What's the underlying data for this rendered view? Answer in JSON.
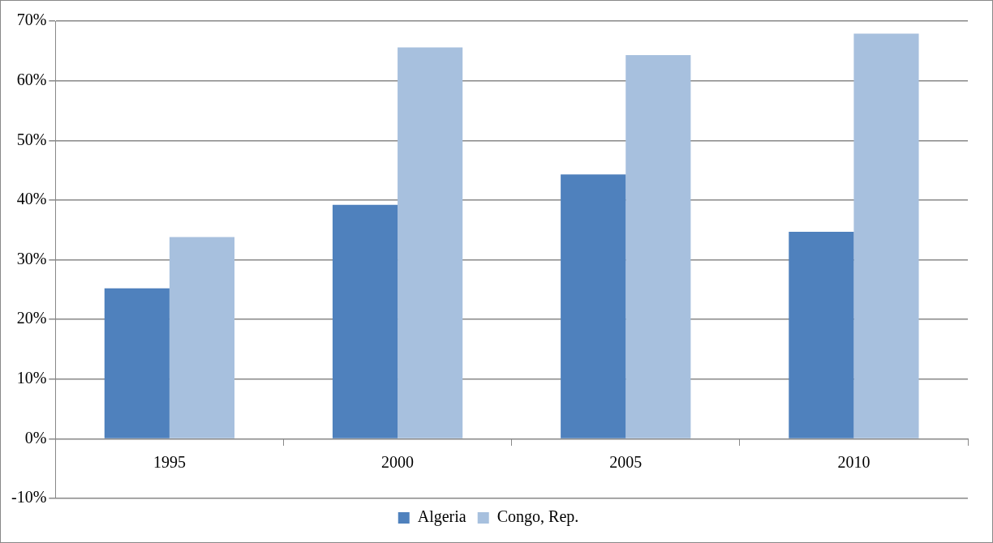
{
  "chart_data": {
    "type": "bar",
    "categories": [
      "1995",
      "2000",
      "2005",
      "2010"
    ],
    "series": [
      {
        "name": "Algeria",
        "color": "#4f81bd",
        "values": [
          25.2,
          39.2,
          44.3,
          34.7
        ]
      },
      {
        "name": "Congo, Rep.",
        "color": "#a7c0de",
        "values": [
          33.8,
          65.6,
          64.3,
          67.9
        ]
      }
    ],
    "ylim": [
      -10,
      70
    ],
    "yticks": [
      {
        "value": -10,
        "label": "-10%"
      },
      {
        "value": 0,
        "label": "0%"
      },
      {
        "value": 10,
        "label": "10%"
      },
      {
        "value": 20,
        "label": "20%"
      },
      {
        "value": 30,
        "label": "30%"
      },
      {
        "value": 40,
        "label": "40%"
      },
      {
        "value": 50,
        "label": "50%"
      },
      {
        "value": 60,
        "label": "60%"
      },
      {
        "value": 70,
        "label": "70%"
      }
    ],
    "grid": "y",
    "legend": "bottom"
  }
}
